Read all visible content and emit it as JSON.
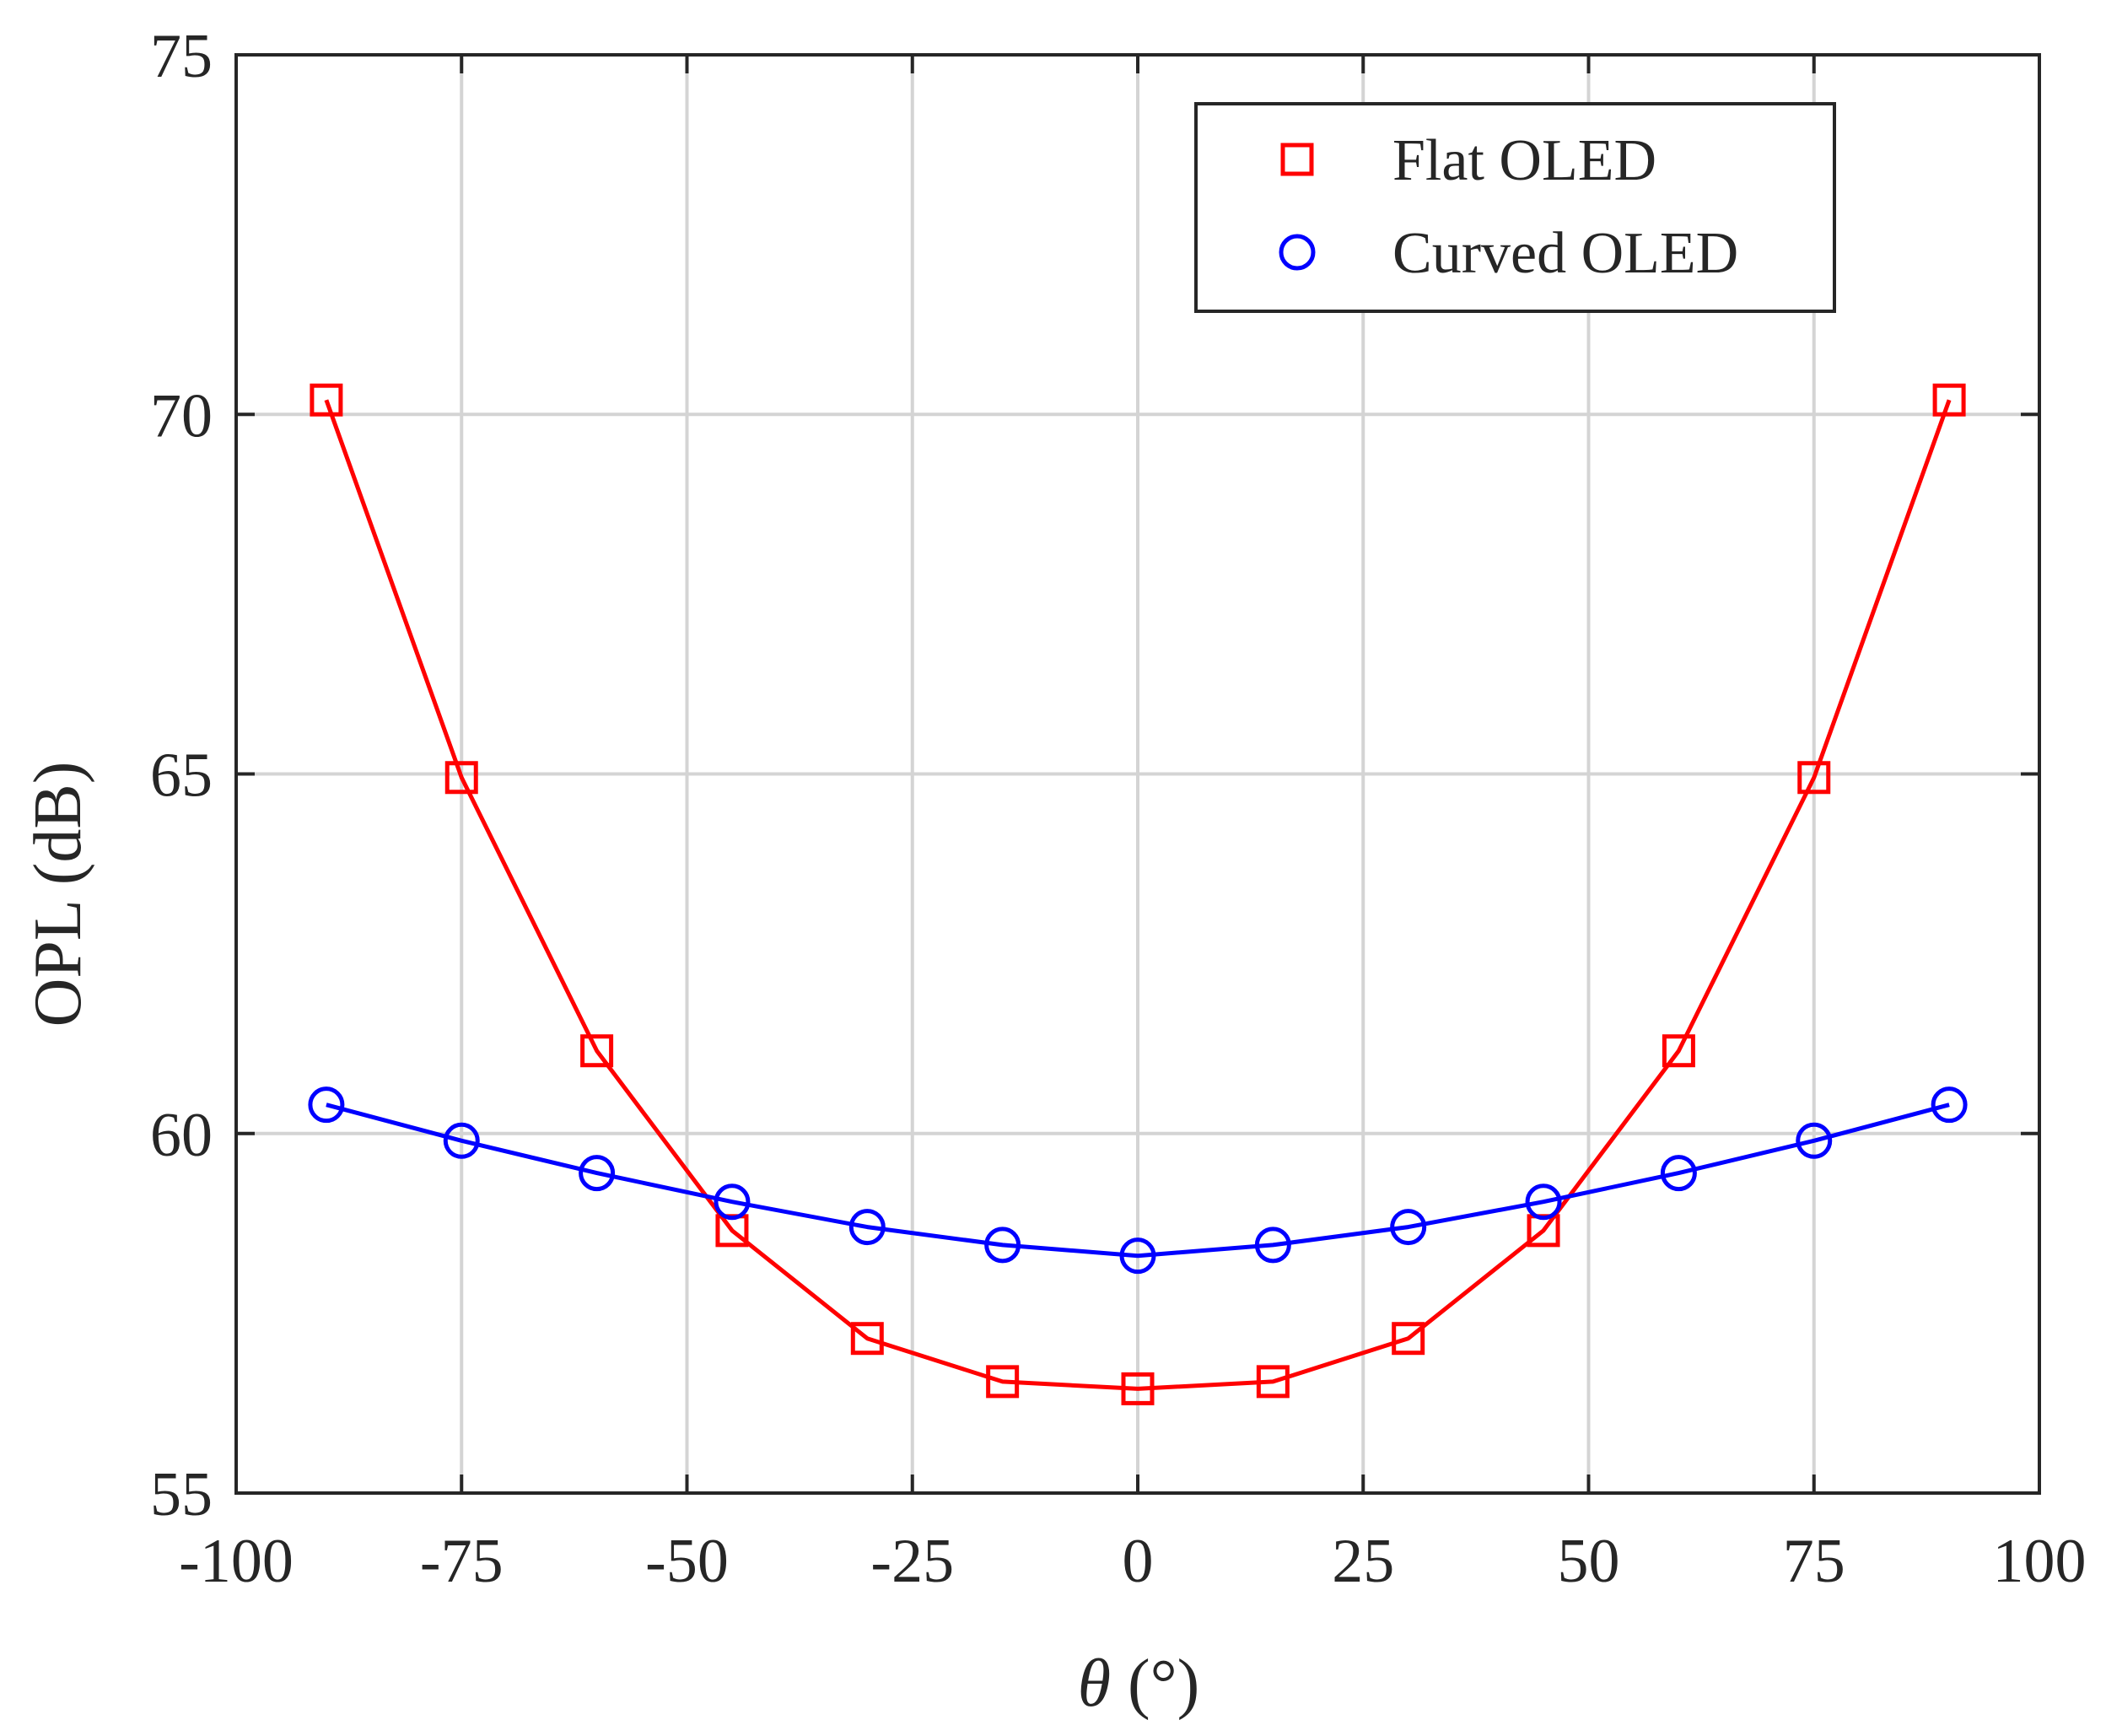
{
  "chart_data": {
    "type": "line",
    "title": "",
    "xlabel_symbol": "θ",
    "xlabel_unit": " (°)",
    "ylabel": "OPL (dB)",
    "xlim": [
      -100,
      100
    ],
    "ylim": [
      55,
      75
    ],
    "xticks": [
      -100,
      -75,
      -50,
      -25,
      0,
      25,
      50,
      75,
      100
    ],
    "yticks": [
      55,
      60,
      65,
      70,
      75
    ],
    "grid": true,
    "legend_position": "top-right",
    "x": [
      -90,
      -75,
      -60,
      -45,
      -30,
      -15,
      0,
      15,
      30,
      45,
      60,
      75,
      90
    ],
    "series": [
      {
        "name": "Flat OLED",
        "marker": "square",
        "color": "#ff0000",
        "values": [
          70.2,
          64.95,
          61.15,
          58.65,
          57.15,
          56.55,
          56.45,
          56.55,
          57.15,
          58.65,
          61.15,
          64.95,
          70.2
        ]
      },
      {
        "name": "Curved OLED",
        "marker": "circle",
        "color": "#0000ff",
        "values": [
          60.4,
          59.9,
          59.45,
          59.05,
          58.7,
          58.45,
          58.3,
          58.45,
          58.7,
          59.05,
          59.45,
          59.9,
          60.4
        ]
      }
    ]
  }
}
